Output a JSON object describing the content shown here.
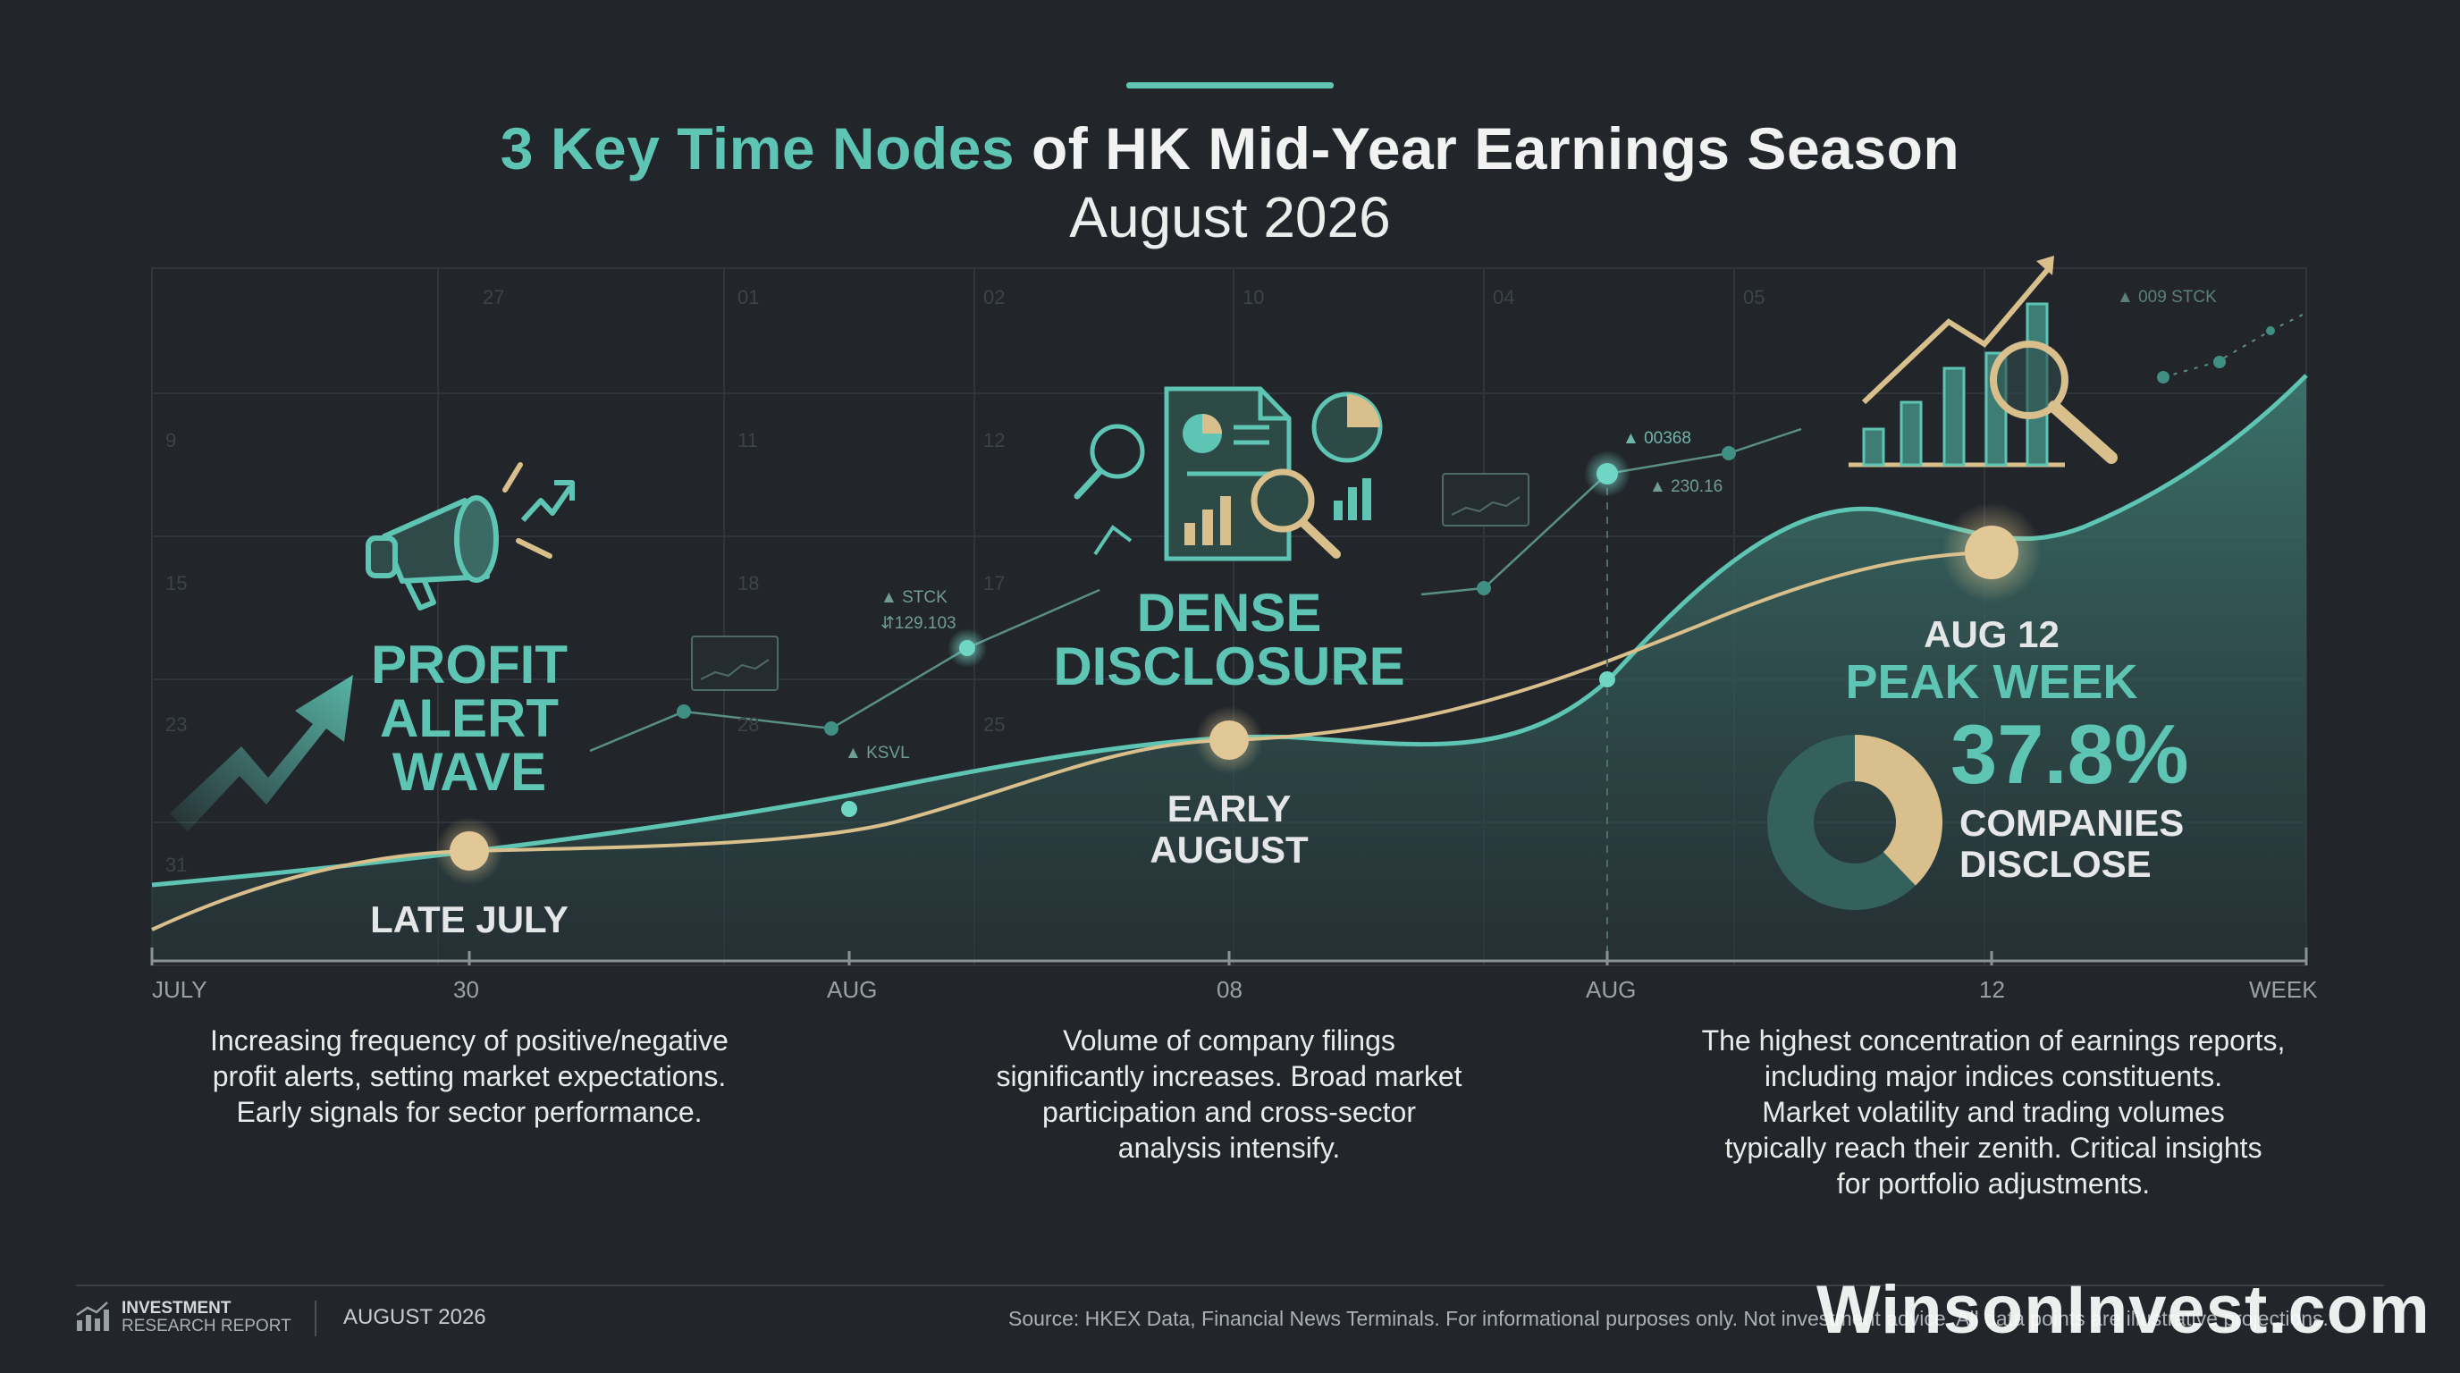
{
  "title": {
    "accent": "3 Key Time Nodes",
    "rest": " of HK Mid-Year Earnings Season",
    "subtitle": "August 2026"
  },
  "nodes": [
    {
      "heading": [
        "PROFIT",
        "ALERT",
        "WAVE"
      ],
      "label": "LATE JULY",
      "description": [
        "Increasing frequency of positive/negative",
        "profit alerts, setting market expectations.",
        "Early signals for sector performance."
      ],
      "icon": "megaphone-icon"
    },
    {
      "heading": [
        "DENSE",
        "DISCLOSURE"
      ],
      "label": [
        "EARLY",
        "AUGUST"
      ],
      "description": [
        "Volume of company filings",
        "significantly increases. Broad market",
        "participation and cross-sector",
        "analysis intensify."
      ],
      "icon": "document-analysis-icon"
    },
    {
      "date": "AUG 12",
      "heading": "PEAK WEEK",
      "stat": "37.8%",
      "stat_label": [
        "COMPANIES",
        "DISCLOSE"
      ],
      "description": [
        "The highest concentration of earnings reports,",
        "including major indices constituents.",
        "Market volatility and trading volumes",
        "typically reach their zenith. Critical insights",
        "for portfolio adjustments."
      ],
      "icon": "bar-chart-magnifier-icon"
    }
  ],
  "axis_labels": [
    "JULY",
    "30",
    "AUG",
    "08",
    "AUG",
    "12",
    "WEEK"
  ],
  "tickers": {
    "stck1": "▲ STCK",
    "val1": "⇵129.103",
    "ksvl": "▲ KSVL",
    "t00368": "▲ 00368",
    "v23016": "▲ 230.16",
    "stck2": "▲ 009 STCK"
  },
  "calendar_numbers": [
    "9",
    "11",
    "12",
    "15",
    "18",
    "17",
    "23",
    "28",
    "25",
    "31",
    "27",
    "02",
    "10",
    "04",
    "05",
    "01"
  ],
  "pie_share": 0.378,
  "footer": {
    "brand_line1": "INVESTMENT",
    "brand_line2": "RESEARCH REPORT",
    "date": "AUGUST 2026",
    "source": "Source: HKEX Data, Financial News Terminals. For informational purposes only. Not investment advice. All data points are illustrative projections.",
    "watermark": "WinsonInvest.com"
  },
  "colors": {
    "background": "#22262b",
    "teal": "#5ec4b3",
    "gold": "#d8bf8c",
    "text": "#e8ebec"
  }
}
